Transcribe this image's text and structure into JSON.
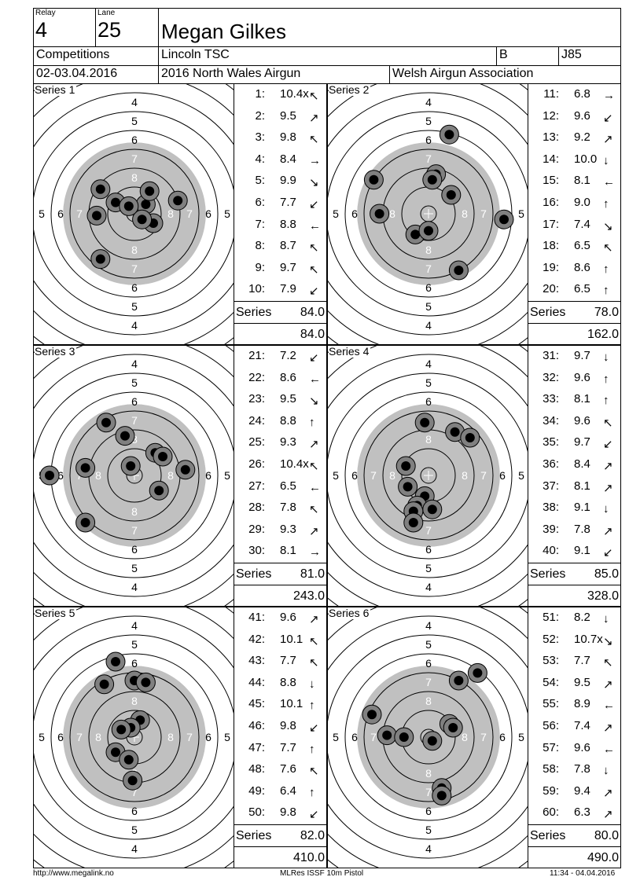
{
  "header": {
    "relay_label": "Relay",
    "relay_value": "4",
    "lane_label": "Lane",
    "lane_value": "25",
    "shooter_name": "Megan Gilkes",
    "competitions_label": "Competitions",
    "club": "Lincoln TSC",
    "class_letter": "B",
    "category": "J85",
    "date": "02-03.04.2016",
    "event": "2016 North Wales Airgun",
    "association": "Welsh Airgun Association"
  },
  "ring_labels": {
    "r4": "4",
    "r5": "5",
    "r6": "6",
    "r7": "7",
    "r8": "8"
  },
  "series_total_label": "Series",
  "series": [
    {
      "label": "Series 1",
      "total": "84.0",
      "cumulative": "84.0",
      "shots": [
        {
          "no": "1:",
          "value": "10.4x",
          "arrow": "up-left"
        },
        {
          "no": "2:",
          "value": "9.5",
          "arrow": "up-right"
        },
        {
          "no": "3:",
          "value": "9.8",
          "arrow": "up-left"
        },
        {
          "no": "4:",
          "value": "8.4",
          "arrow": "right"
        },
        {
          "no": "5:",
          "value": "9.9",
          "arrow": "down-right"
        },
        {
          "no": "6:",
          "value": "7.7",
          "arrow": "down-left"
        },
        {
          "no": "7:",
          "value": "8.8",
          "arrow": "left"
        },
        {
          "no": "8:",
          "value": "8.7",
          "arrow": "up-left"
        },
        {
          "no": "9:",
          "value": "9.7",
          "arrow": "up-left"
        },
        {
          "no": "10:",
          "value": "7.9",
          "arrow": "down-left"
        }
      ],
      "impacts": [
        [
          0.6,
          -0.5
        ],
        [
          -1.8,
          -1.3
        ],
        [
          -1.0,
          -0.6
        ],
        [
          2.3,
          -0.7
        ],
        [
          0.8,
          -1.2
        ],
        [
          1.0,
          0.5
        ],
        [
          -2.0,
          0.1
        ],
        [
          0.4,
          0.3
        ],
        [
          -0.3,
          -0.4
        ],
        [
          -1.8,
          2.4
        ]
      ]
    },
    {
      "label": "Series 2",
      "total": "78.0",
      "cumulative": "162.0",
      "shots": [
        {
          "no": "11:",
          "value": "6.8",
          "arrow": "right"
        },
        {
          "no": "12:",
          "value": "9.6",
          "arrow": "down-left"
        },
        {
          "no": "13:",
          "value": "9.2",
          "arrow": "up-right"
        },
        {
          "no": "14:",
          "value": "10.0",
          "arrow": "down"
        },
        {
          "no": "15:",
          "value": "8.1",
          "arrow": "left"
        },
        {
          "no": "16:",
          "value": "9.0",
          "arrow": "up"
        },
        {
          "no": "17:",
          "value": "7.4",
          "arrow": "down-right"
        },
        {
          "no": "18:",
          "value": "6.5",
          "arrow": "up-left"
        },
        {
          "no": "19:",
          "value": "8.6",
          "arrow": "up"
        },
        {
          "no": "20:",
          "value": "6.5",
          "arrow": "up"
        }
      ],
      "impacts": [
        [
          1.1,
          -4.2
        ],
        [
          0.4,
          -2.1
        ],
        [
          0.2,
          -1.8
        ],
        [
          1.2,
          -1.0
        ],
        [
          -2.9,
          -1.8
        ],
        [
          -2.6,
          0.0
        ],
        [
          4.0,
          0.3
        ],
        [
          -0.7,
          1.1
        ],
        [
          0.0,
          0.9
        ],
        [
          1.6,
          3.0
        ]
      ]
    },
    {
      "label": "Series 3",
      "total": "81.0",
      "cumulative": "243.0",
      "shots": [
        {
          "no": "21:",
          "value": "7.2",
          "arrow": "down-left"
        },
        {
          "no": "22:",
          "value": "8.6",
          "arrow": "left"
        },
        {
          "no": "23:",
          "value": "9.5",
          "arrow": "down-right"
        },
        {
          "no": "24:",
          "value": "8.8",
          "arrow": "up"
        },
        {
          "no": "25:",
          "value": "9.3",
          "arrow": "up-right"
        },
        {
          "no": "26:",
          "value": "10.4x",
          "arrow": "up-left"
        },
        {
          "no": "27:",
          "value": "6.5",
          "arrow": "left"
        },
        {
          "no": "28:",
          "value": "7.8",
          "arrow": "up-left"
        },
        {
          "no": "29:",
          "value": "9.3",
          "arrow": "up-right"
        },
        {
          "no": "30:",
          "value": "8.1",
          "arrow": "right"
        }
      ],
      "impacts": [
        [
          -1.5,
          -2.8
        ],
        [
          -0.5,
          -2.1
        ],
        [
          1.1,
          -1.2
        ],
        [
          1.5,
          -1.0
        ],
        [
          2.7,
          -0.3
        ],
        [
          -0.2,
          -0.5
        ],
        [
          -4.5,
          0.0
        ],
        [
          -2.6,
          -0.4
        ],
        [
          1.3,
          0.8
        ],
        [
          -2.6,
          2.5
        ]
      ]
    },
    {
      "label": "Series 4",
      "total": "85.0",
      "cumulative": "328.0",
      "shots": [
        {
          "no": "31:",
          "value": "9.7",
          "arrow": "down"
        },
        {
          "no": "32:",
          "value": "9.6",
          "arrow": "up"
        },
        {
          "no": "33:",
          "value": "8.1",
          "arrow": "up"
        },
        {
          "no": "34:",
          "value": "9.6",
          "arrow": "up-left"
        },
        {
          "no": "35:",
          "value": "9.7",
          "arrow": "down-left"
        },
        {
          "no": "36:",
          "value": "8.4",
          "arrow": "up-right"
        },
        {
          "no": "37:",
          "value": "8.1",
          "arrow": "up-right"
        },
        {
          "no": "38:",
          "value": "9.1",
          "arrow": "down"
        },
        {
          "no": "39:",
          "value": "7.8",
          "arrow": "up-right"
        },
        {
          "no": "40:",
          "value": "9.1",
          "arrow": "down-left"
        }
      ],
      "impacts": [
        [
          -0.2,
          -2.8
        ],
        [
          1.4,
          -2.3
        ],
        [
          2.2,
          -2.0
        ],
        [
          -1.2,
          -0.5
        ],
        [
          -1.1,
          0.6
        ],
        [
          -0.2,
          1.1
        ],
        [
          -0.6,
          1.6
        ],
        [
          0.2,
          1.8
        ],
        [
          -0.8,
          1.9
        ],
        [
          -0.8,
          2.5
        ]
      ]
    },
    {
      "label": "Series 5",
      "total": "82.0",
      "cumulative": "410.0",
      "shots": [
        {
          "no": "41:",
          "value": "9.6",
          "arrow": "up-right"
        },
        {
          "no": "42:",
          "value": "10.1",
          "arrow": "up-left"
        },
        {
          "no": "43:",
          "value": "7.7",
          "arrow": "up-left"
        },
        {
          "no": "44:",
          "value": "8.8",
          "arrow": "down"
        },
        {
          "no": "45:",
          "value": "10.1",
          "arrow": "up"
        },
        {
          "no": "46:",
          "value": "9.8",
          "arrow": "down-left"
        },
        {
          "no": "47:",
          "value": "7.7",
          "arrow": "up"
        },
        {
          "no": "48:",
          "value": "7.6",
          "arrow": "up-left"
        },
        {
          "no": "49:",
          "value": "6.4",
          "arrow": "up"
        },
        {
          "no": "50:",
          "value": "9.8",
          "arrow": "down-left"
        }
      ],
      "impacts": [
        [
          -1.0,
          -4.0
        ],
        [
          -1.6,
          -2.8
        ],
        [
          0.0,
          -3.0
        ],
        [
          0.6,
          -2.9
        ],
        [
          0.3,
          -0.9
        ],
        [
          -0.2,
          -0.5
        ],
        [
          -0.7,
          -0.4
        ],
        [
          -1.0,
          0.8
        ],
        [
          -0.3,
          1.2
        ],
        [
          -0.1,
          2.3
        ]
      ]
    },
    {
      "label": "Series 6",
      "total": "80.0",
      "cumulative": "490.0",
      "shots": [
        {
          "no": "51:",
          "value": "8.2",
          "arrow": "down"
        },
        {
          "no": "52:",
          "value": "10.7x",
          "arrow": "down-right"
        },
        {
          "no": "53:",
          "value": "7.7",
          "arrow": "up-left"
        },
        {
          "no": "54:",
          "value": "9.5",
          "arrow": "up-right"
        },
        {
          "no": "55:",
          "value": "8.9",
          "arrow": "left"
        },
        {
          "no": "56:",
          "value": "7.4",
          "arrow": "up-right"
        },
        {
          "no": "57:",
          "value": "9.6",
          "arrow": "left"
        },
        {
          "no": "58:",
          "value": "7.8",
          "arrow": "down"
        },
        {
          "no": "59:",
          "value": "9.4",
          "arrow": "up-right"
        },
        {
          "no": "60:",
          "value": "6.3",
          "arrow": "up-right"
        }
      ],
      "impacts": [
        [
          2.6,
          -3.4
        ],
        [
          1.6,
          -3.0
        ],
        [
          -3.0,
          -1.2
        ],
        [
          1.1,
          -0.7
        ],
        [
          1.3,
          -0.5
        ],
        [
          0.2,
          0.2
        ],
        [
          -2.2,
          -0.1
        ],
        [
          -1.3,
          0.0
        ],
        [
          0.7,
          2.7
        ],
        [
          0.7,
          3.1
        ]
      ]
    }
  ],
  "footer": {
    "left": "http://www.megalink.no",
    "center": "MLRes ISSF 10m Pistol",
    "right": "11:34 - 04.04.2016"
  }
}
